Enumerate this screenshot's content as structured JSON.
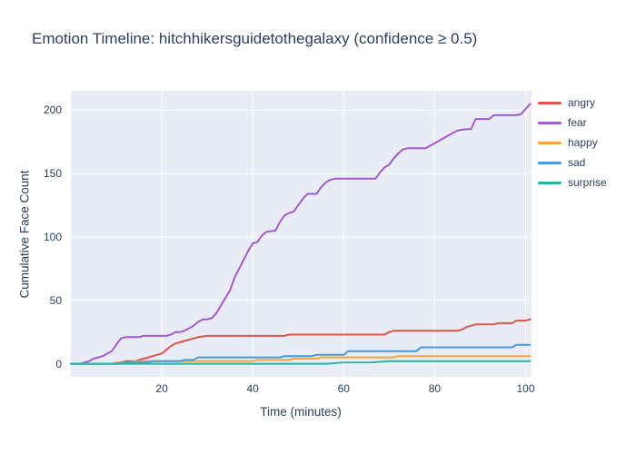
{
  "title": "Emotion Timeline: hitchhikersguidetothegalaxy (confidence ≥ 0.5)",
  "colors": {
    "page_background": "#ffffff",
    "plot_background": "#e7ecf5",
    "grid": "#ffffff",
    "text": "#2a3f5f"
  },
  "chart_data": {
    "type": "line",
    "title": "Emotion Timeline: hitchhikersguidetothegalaxy (confidence ≥ 0.5)",
    "xlabel": "Time (minutes)",
    "ylabel": "Cumulative Face Count",
    "xlim": [
      0,
      101.3
    ],
    "ylim": [
      -10.3,
      215.3
    ],
    "xticks": [
      20,
      40,
      60,
      80,
      100
    ],
    "yticks": [
      0,
      50,
      100,
      150,
      200
    ],
    "grid": true,
    "legend_position": "right",
    "series": [
      {
        "name": "angry",
        "color": "#e2544a",
        "points": [
          [
            0,
            0
          ],
          [
            10,
            0
          ],
          [
            11,
            1
          ],
          [
            12,
            2
          ],
          [
            14,
            2
          ],
          [
            15,
            3
          ],
          [
            16,
            4
          ],
          [
            17,
            5
          ],
          [
            18,
            6
          ],
          [
            19,
            7
          ],
          [
            20,
            8
          ],
          [
            21,
            11
          ],
          [
            22,
            14
          ],
          [
            23,
            16
          ],
          [
            24,
            17
          ],
          [
            25,
            18
          ],
          [
            26,
            19
          ],
          [
            27,
            20
          ],
          [
            28,
            21
          ],
          [
            30,
            22
          ],
          [
            47,
            22
          ],
          [
            48,
            23
          ],
          [
            69,
            23
          ],
          [
            70,
            25
          ],
          [
            71,
            26
          ],
          [
            85,
            26
          ],
          [
            86,
            27
          ],
          [
            87,
            29
          ],
          [
            88,
            30
          ],
          [
            89,
            31
          ],
          [
            93,
            31
          ],
          [
            94,
            32
          ],
          [
            97,
            32
          ],
          [
            98,
            34
          ],
          [
            100,
            34
          ],
          [
            101,
            35
          ]
        ]
      },
      {
        "name": "fear",
        "color": "#a35ace",
        "points": [
          [
            0,
            0
          ],
          [
            2,
            0
          ],
          [
            3,
            1
          ],
          [
            4,
            2
          ],
          [
            5,
            4
          ],
          [
            6,
            5
          ],
          [
            7,
            6
          ],
          [
            8,
            8
          ],
          [
            9,
            10
          ],
          [
            10,
            15
          ],
          [
            11,
            20
          ],
          [
            12,
            21
          ],
          [
            15,
            21
          ],
          [
            16,
            22
          ],
          [
            21,
            22
          ],
          [
            22,
            23
          ],
          [
            23,
            25
          ],
          [
            24,
            25
          ],
          [
            25,
            26
          ],
          [
            26,
            28
          ],
          [
            27,
            30
          ],
          [
            28,
            33
          ],
          [
            29,
            35
          ],
          [
            30,
            35
          ],
          [
            31,
            36
          ],
          [
            32,
            40
          ],
          [
            33,
            46
          ],
          [
            34,
            52
          ],
          [
            35,
            58
          ],
          [
            36,
            68
          ],
          [
            37,
            75
          ],
          [
            38,
            82
          ],
          [
            39,
            89
          ],
          [
            40,
            95
          ],
          [
            41,
            96
          ],
          [
            42,
            101
          ],
          [
            43,
            104
          ],
          [
            45,
            105
          ],
          [
            46,
            112
          ],
          [
            47,
            117
          ],
          [
            48,
            119
          ],
          [
            49,
            120
          ],
          [
            50,
            125
          ],
          [
            51,
            130
          ],
          [
            52,
            134
          ],
          [
            54,
            134
          ],
          [
            55,
            139
          ],
          [
            56,
            143
          ],
          [
            57,
            145
          ],
          [
            58,
            146
          ],
          [
            67,
            146
          ],
          [
            68,
            151
          ],
          [
            69,
            155
          ],
          [
            70,
            157
          ],
          [
            71,
            162
          ],
          [
            72,
            166
          ],
          [
            73,
            169
          ],
          [
            74,
            170
          ],
          [
            78,
            170
          ],
          [
            79,
            172
          ],
          [
            80,
            174
          ],
          [
            81,
            176
          ],
          [
            82,
            178
          ],
          [
            83,
            180
          ],
          [
            84,
            182
          ],
          [
            85,
            184
          ],
          [
            87,
            185
          ],
          [
            88,
            185
          ],
          [
            89,
            193
          ],
          [
            92,
            193
          ],
          [
            93,
            196
          ],
          [
            98,
            196
          ],
          [
            99,
            197
          ],
          [
            100,
            201
          ],
          [
            101,
            205
          ]
        ]
      },
      {
        "name": "happy",
        "color": "#f9a23c",
        "points": [
          [
            0,
            0
          ],
          [
            9,
            0
          ],
          [
            10,
            1
          ],
          [
            13,
            1
          ],
          [
            14,
            2
          ],
          [
            40,
            2
          ],
          [
            41,
            3
          ],
          [
            48,
            3
          ],
          [
            49,
            4
          ],
          [
            54,
            4
          ],
          [
            55,
            5
          ],
          [
            71,
            5
          ],
          [
            72,
            6
          ],
          [
            101,
            6
          ]
        ]
      },
      {
        "name": "sad",
        "color": "#4a99da",
        "points": [
          [
            0,
            0
          ],
          [
            10,
            0
          ],
          [
            11,
            1
          ],
          [
            17,
            1
          ],
          [
            18,
            2
          ],
          [
            24,
            2
          ],
          [
            25,
            3
          ],
          [
            27,
            3
          ],
          [
            28,
            5
          ],
          [
            46,
            5
          ],
          [
            47,
            6
          ],
          [
            53,
            6
          ],
          [
            54,
            7
          ],
          [
            60,
            7
          ],
          [
            61,
            10
          ],
          [
            76,
            10
          ],
          [
            77,
            13
          ],
          [
            97,
            13
          ],
          [
            98,
            15
          ],
          [
            101,
            15
          ]
        ]
      },
      {
        "name": "surprise",
        "color": "#27b5a4",
        "points": [
          [
            0,
            0
          ],
          [
            56,
            0
          ],
          [
            60,
            1
          ],
          [
            66,
            1
          ],
          [
            70,
            2
          ],
          [
            101,
            2
          ]
        ]
      }
    ]
  }
}
